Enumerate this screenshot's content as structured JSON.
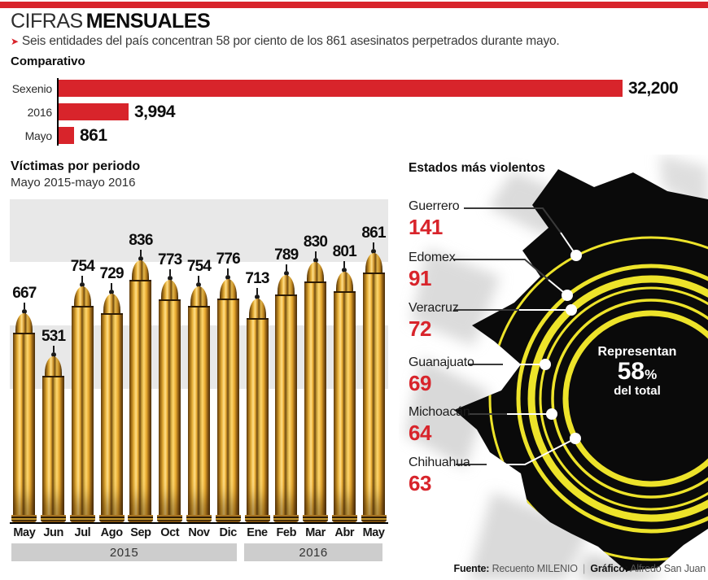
{
  "accent_red": "#d8242b",
  "ring_yellow": "#ede32a",
  "header": {
    "title_light": "CIFRAS",
    "title_bold": "MENSUALES",
    "subtitle_arrow": "➤",
    "subtitle": "Seis entidades del país concentran 58 por ciento de los 861 asesinatos perpetrados durante mayo."
  },
  "comparativo": {
    "title": "Comparativo"
  },
  "victimas": {
    "title": "Víctimas por periodo",
    "subtitle": "Mayo 2015-mayo 2016"
  },
  "estados": {
    "title": "Estados más violentos",
    "note": {
      "line1": "Representan",
      "number": "58",
      "percent": "%",
      "line2": "del total"
    }
  },
  "footer": {
    "fuente_label": "Fuente:",
    "fuente_value": "Recuento MILENIO",
    "separator": "|",
    "grafico_label": "Gráfico:",
    "grafico_value": "Alfredo San Juan"
  },
  "chart_data": [
    {
      "id": "comparativo",
      "type": "bar",
      "orientation": "horizontal",
      "title": "Comparativo",
      "categories": [
        "Sexenio",
        "2016",
        "Mayo"
      ],
      "values": [
        32200,
        3994,
        861
      ],
      "value_labels": [
        "32,200",
        "3,994",
        "861"
      ],
      "xlim": [
        0,
        32200
      ],
      "bar_color": "#d8242b",
      "grid": false,
      "legend": "none"
    },
    {
      "id": "victimas_por_periodo",
      "type": "bar",
      "title": "Víctimas por periodo",
      "subtitle": "Mayo 2015-mayo 2016",
      "categories": [
        "May",
        "Jun",
        "Jul",
        "Ago",
        "Sep",
        "Oct",
        "Nov",
        "Dic",
        "Ene",
        "Feb",
        "Mar",
        "Abr",
        "May"
      ],
      "values": [
        667,
        531,
        754,
        729,
        836,
        773,
        754,
        776,
        713,
        789,
        830,
        801,
        861
      ],
      "year_groups": [
        {
          "label": "2015",
          "span": 8
        },
        {
          "label": "2016",
          "span": 5
        }
      ],
      "ylim": [
        0,
        1030
      ],
      "bar_style": "bullet-cartridge",
      "grid": false,
      "legend": "none"
    },
    {
      "id": "estados_mas_violentos",
      "type": "table",
      "title": "Estados más violentos",
      "categories": [
        "Guerrero",
        "Edomex",
        "Veracruz",
        "Guanajuato",
        "Michoacán",
        "Chihuahua"
      ],
      "values": [
        141,
        91,
        72,
        69,
        64,
        63
      ],
      "annotation": "Representan 58% del total"
    }
  ]
}
